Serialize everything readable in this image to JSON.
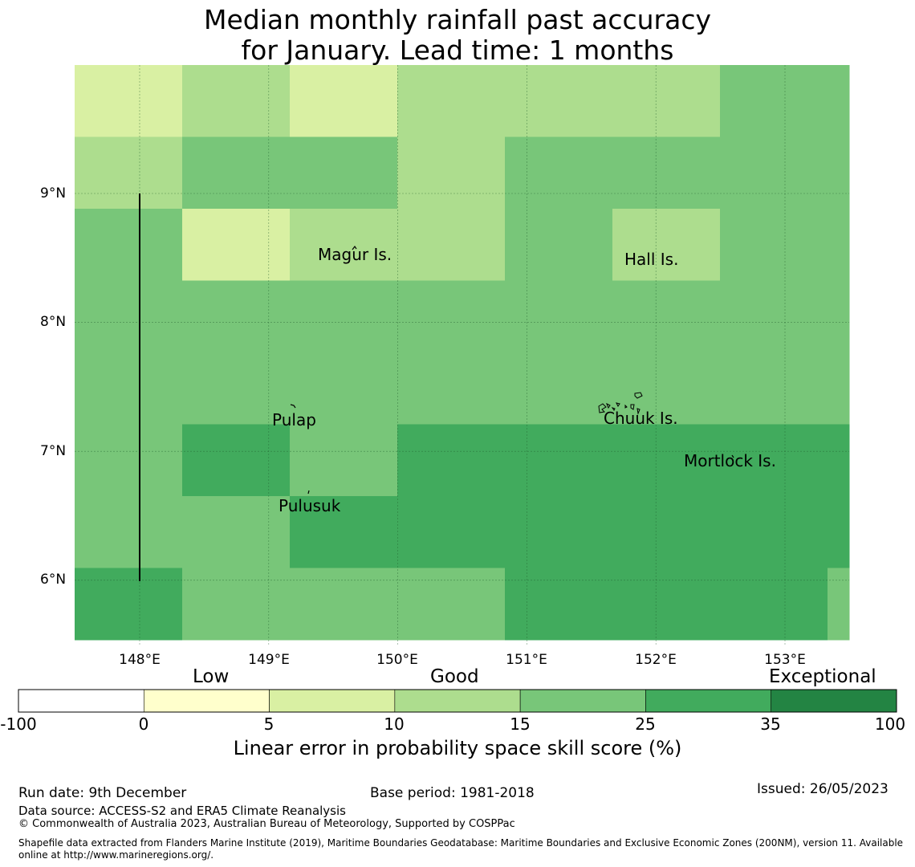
{
  "title": {
    "line1": "Median monthly rainfall past accuracy",
    "line2": "for January. Lead time: 1 months"
  },
  "map": {
    "lon_range": [
      147.5,
      153.5
    ],
    "lat_range": [
      5.5,
      10.0
    ],
    "lat_ticks": [
      {
        "label": "9°N",
        "lat": 9
      },
      {
        "label": "8°N",
        "lat": 8
      },
      {
        "label": "7°N",
        "lat": 7
      },
      {
        "label": "6°N",
        "lat": 6
      }
    ],
    "lon_ticks": [
      {
        "label": "148°E",
        "lon": 148
      },
      {
        "label": "149°E",
        "lon": 149
      },
      {
        "label": "150°E",
        "lon": 150
      },
      {
        "label": "151°E",
        "lon": 151
      },
      {
        "label": "152°E",
        "lon": 152
      },
      {
        "label": "153°E",
        "lon": 153
      }
    ],
    "grid_cols": 8,
    "grid_rows": 8,
    "skill_bins": [
      [
        2,
        3,
        2,
        3,
        3,
        3,
        4,
        4
      ],
      [
        3,
        4,
        4,
        3,
        4,
        4,
        4,
        4
      ],
      [
        4,
        2,
        3,
        3,
        4,
        3,
        4,
        4
      ],
      [
        4,
        4,
        4,
        4,
        4,
        4,
        4,
        4
      ],
      [
        4,
        4,
        4,
        4,
        4,
        4,
        4,
        4
      ],
      [
        4,
        5,
        4,
        5,
        5,
        5,
        5,
        5
      ],
      [
        4,
        4,
        5,
        5,
        5,
        5,
        5,
        5
      ],
      [
        5,
        4,
        4,
        4,
        5,
        5,
        5,
        4
      ]
    ],
    "places": [
      {
        "name": "Magur Is.",
        "lon": 149.38,
        "lat": 8.52
      },
      {
        "name": "Hall Is.",
        "lon": 151.76,
        "lat": 8.48
      },
      {
        "name": "Pulap",
        "lon": 149.03,
        "lat": 7.24
      },
      {
        "name": "Chuuk Is.",
        "lon": 151.6,
        "lat": 7.25
      },
      {
        "name": "Mortlock Is.",
        "lon": 152.22,
        "lat": 6.92
      },
      {
        "name": "Pulusuk",
        "lon": 149.08,
        "lat": 6.57
      }
    ]
  },
  "colorbar": {
    "bins": [
      {
        "from": "-100",
        "to": "0",
        "color": "#ffffff"
      },
      {
        "from": "0",
        "to": "5",
        "color": "#ffffcc"
      },
      {
        "from": "5",
        "to": "10",
        "color": "#d9f0a3"
      },
      {
        "from": "10",
        "to": "15",
        "color": "#addd8e"
      },
      {
        "from": "15",
        "to": "25",
        "color": "#78c679"
      },
      {
        "from": "25",
        "to": "35",
        "color": "#41ab5d"
      },
      {
        "from": "35",
        "to": "100",
        "color": "#238443"
      }
    ],
    "tick_labels": [
      "-100",
      "0",
      "5",
      "10",
      "15",
      "25",
      "35",
      "100"
    ],
    "categories": {
      "low": "Low",
      "good": "Good",
      "exceptional": "Exceptional"
    },
    "title": "Linear error in probability space skill score (%)"
  },
  "footer": {
    "run_date": "Run date: 9th December",
    "base_period": "Base period: 1981-2018",
    "issued": "Issued: 26/05/2023",
    "data_source": "Data source: ACCESS-S2 and ERA5 Climate Reanalysis",
    "copyright": "© Commonwealth of Australia 2023, Australian Bureau of Meteorology, Supported by COSPPac",
    "shapefile_line1": "Shapefile data extracted from Flanders Marine Institute (2019), Maritime Boundaries Geodatabase: Maritime Boundaries and Exclusive Economic Zones (200NM), version 11. Available",
    "shapefile_line2": "online at http://www.marineregions.org/."
  }
}
